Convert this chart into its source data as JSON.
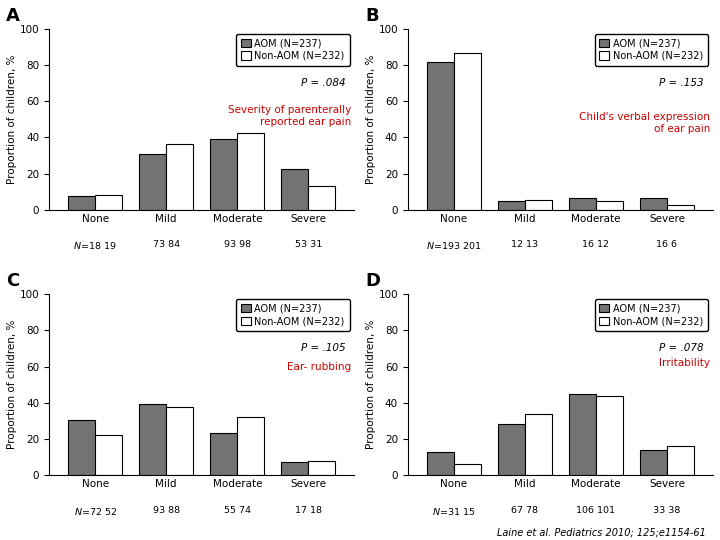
{
  "panels": [
    {
      "label": "A",
      "title": "Severity of parenterally\nreported ear pain",
      "p_value": "P = .084",
      "categories": [
        "None",
        "Mild",
        "Moderate",
        "Severe"
      ],
      "aom_values": [
        7.6,
        30.8,
        39.2,
        22.4
      ],
      "nonaom_values": [
        8.2,
        36.2,
        42.2,
        13.4
      ],
      "aom_n": [
        18,
        73,
        93,
        53
      ],
      "nonaom_n": [
        19,
        84,
        98,
        31
      ]
    },
    {
      "label": "B",
      "title": "Child's verbal expression\nof ear pain",
      "p_value": "P = .153",
      "categories": [
        "None",
        "Mild",
        "Moderate",
        "Severe"
      ],
      "aom_values": [
        81.4,
        5.1,
        6.8,
        6.8
      ],
      "nonaom_values": [
        86.6,
        5.6,
        5.2,
        2.6
      ],
      "aom_n": [
        193,
        12,
        16,
        16
      ],
      "nonaom_n": [
        201,
        13,
        12,
        6
      ]
    },
    {
      "label": "C",
      "title": "Ear- rubbing",
      "p_value": "P = .105",
      "categories": [
        "None",
        "Mild",
        "Moderate",
        "Severe"
      ],
      "aom_values": [
        30.4,
        39.2,
        23.2,
        7.2
      ],
      "nonaom_values": [
        22.4,
        37.9,
        31.9,
        7.8
      ],
      "aom_n": [
        72,
        93,
        55,
        17
      ],
      "nonaom_n": [
        52,
        88,
        74,
        18
      ]
    },
    {
      "label": "D",
      "title": "Irritability",
      "p_value": "P = .078",
      "categories": [
        "None",
        "Mild",
        "Moderate",
        "Severe"
      ],
      "aom_values": [
        13.1,
        28.3,
        44.7,
        14.0
      ],
      "nonaom_values": [
        6.5,
        33.6,
        43.5,
        16.4
      ],
      "aom_n": [
        31,
        67,
        106,
        33
      ],
      "nonaom_n": [
        15,
        78,
        101,
        38
      ]
    }
  ],
  "aom_color": "#737373",
  "nonaom_color": "#ffffff",
  "bar_edge_color": "#000000",
  "title_color": "#cc0000",
  "ylabel": "Proportion of children, %",
  "ylim": [
    0,
    100
  ],
  "yticks": [
    0,
    20,
    40,
    60,
    80,
    100
  ],
  "legend_aom": "AOM (N=237)",
  "legend_nonaom": "Non-AOM (N=232)",
  "citation": "Laine et al. Pediatrics 2010; 125;e1154-61",
  "bar_width": 0.38,
  "bg_color": "#ffffff"
}
